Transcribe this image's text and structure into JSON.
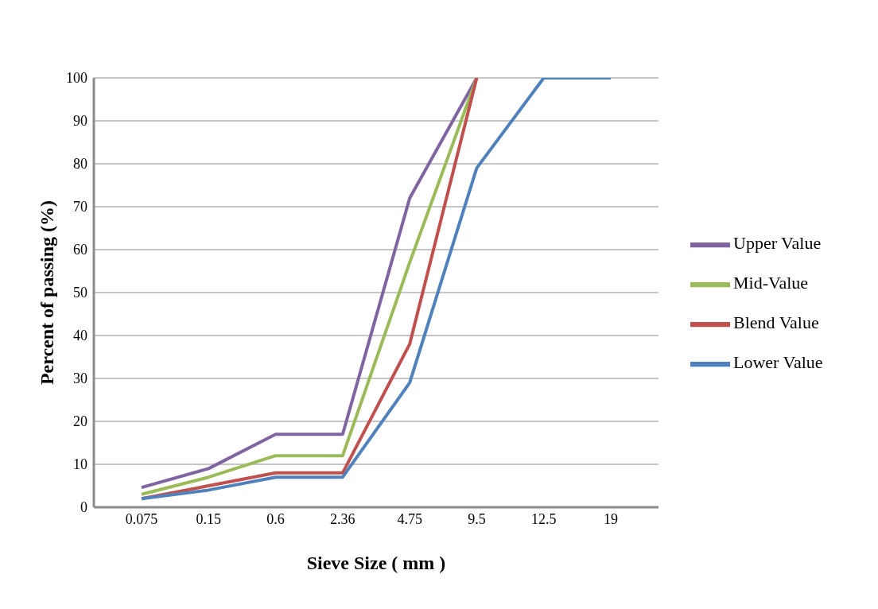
{
  "chart_data": {
    "type": "line",
    "xlabel": "Sieve Size ( mm )",
    "ylabel": "Percent of passing (%)",
    "categories": [
      "0.075",
      "0.15",
      "0.6",
      "2.36",
      "4.75",
      "9.5",
      "12.5",
      "19"
    ],
    "ylim": [
      0,
      100
    ],
    "yticks": [
      0,
      10,
      20,
      30,
      40,
      50,
      60,
      70,
      80,
      90,
      100
    ],
    "grid": "y",
    "legend": "right",
    "marker": "none",
    "line_style": "solid",
    "series": [
      {
        "name": "Upper Value",
        "color": "#8064a2",
        "values": [
          4.6,
          9,
          17,
          17,
          72,
          100,
          null,
          null
        ]
      },
      {
        "name": "Mid-Value",
        "color": "#9bbb59",
        "values": [
          3,
          7,
          12,
          12,
          57,
          100,
          null,
          null
        ]
      },
      {
        "name": "Blend Value",
        "color": "#c0504d",
        "values": [
          2,
          5,
          8,
          8,
          38,
          100,
          null,
          null
        ]
      },
      {
        "name": "Lower Value",
        "color": "#4f81bd",
        "values": [
          2,
          4,
          7,
          7,
          29,
          79,
          100,
          100
        ]
      }
    ]
  }
}
